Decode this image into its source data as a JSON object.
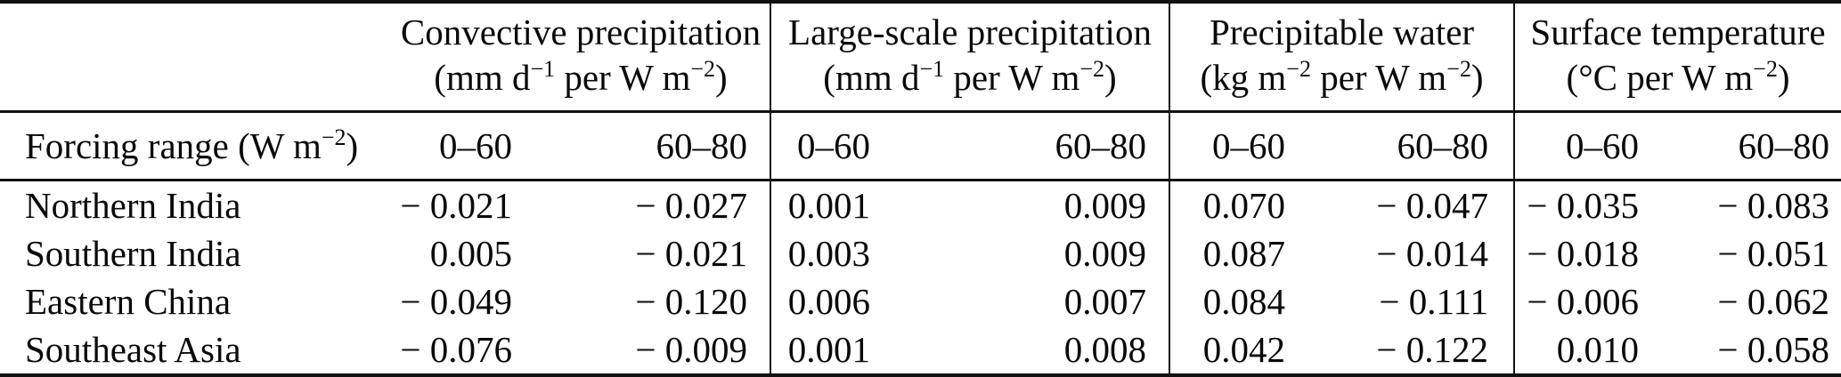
{
  "table": {
    "groups": [
      {
        "name": "Convective precipitation",
        "unit_segments": [
          {
            "t": "(mm d"
          },
          {
            "t": "−1",
            "sup": true
          },
          {
            "t": " per W m"
          },
          {
            "t": "−2",
            "sup": true
          },
          {
            "t": ")"
          }
        ]
      },
      {
        "name": "Large-scale precipitation",
        "unit_segments": [
          {
            "t": "(mm d"
          },
          {
            "t": "−1",
            "sup": true
          },
          {
            "t": " per W m"
          },
          {
            "t": "−2",
            "sup": true
          },
          {
            "t": ")"
          }
        ]
      },
      {
        "name": "Precipitable water",
        "unit_segments": [
          {
            "t": "(kg m"
          },
          {
            "t": "−2",
            "sup": true
          },
          {
            "t": " per W m"
          },
          {
            "t": "−2",
            "sup": true
          },
          {
            "t": ")"
          }
        ]
      },
      {
        "name": "Surface temperature",
        "unit_segments": [
          {
            "t": "(°C per W m"
          },
          {
            "t": "−2",
            "sup": true
          },
          {
            "t": ")"
          }
        ]
      }
    ],
    "forcing_label_segments": [
      {
        "t": "Forcing range (W m"
      },
      {
        "t": "−2",
        "sup": true
      },
      {
        "t": ")"
      }
    ],
    "forcing_ranges": [
      "0–60",
      "60–80"
    ],
    "rows": [
      {
        "region": "Northern India",
        "values": [
          "− 0.021",
          "− 0.027",
          "0.001",
          "0.009",
          "0.070",
          "− 0.047",
          "− 0.035",
          "− 0.083"
        ]
      },
      {
        "region": "Southern India",
        "values": [
          "0.005",
          "− 0.021",
          "0.003",
          "0.009",
          "0.087",
          "− 0.014",
          "− 0.018",
          "− 0.051"
        ]
      },
      {
        "region": "Eastern China",
        "values": [
          "− 0.049",
          "− 0.120",
          "0.006",
          "0.007",
          "0.084",
          "− 0.111",
          "− 0.006",
          "− 0.062"
        ]
      },
      {
        "region": "Southeast Asia",
        "values": [
          "− 0.076",
          "− 0.009",
          "0.001",
          "0.008",
          "0.042",
          "− 0.122",
          "0.010",
          "− 0.058"
        ]
      }
    ]
  }
}
